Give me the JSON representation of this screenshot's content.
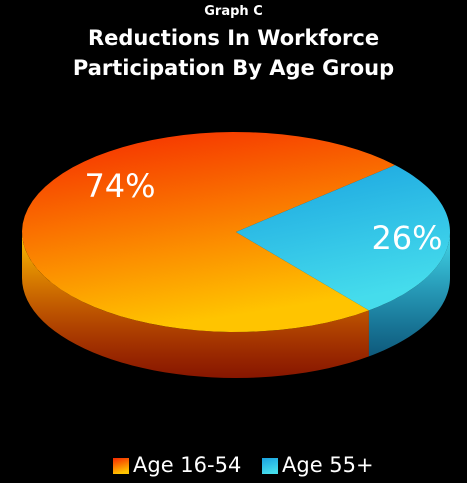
{
  "chart_data": {
    "type": "pie",
    "supertitle": "Graph C",
    "title": "Reductions In Workforce Participation By Age Group",
    "categories": [
      "Age 16-54",
      "Age 55+"
    ],
    "values": [
      74,
      26
    ],
    "value_labels": [
      "74%",
      "26%"
    ],
    "colors": [
      "#f52800",
      "#1aa3e0"
    ],
    "legend": "bottom"
  }
}
